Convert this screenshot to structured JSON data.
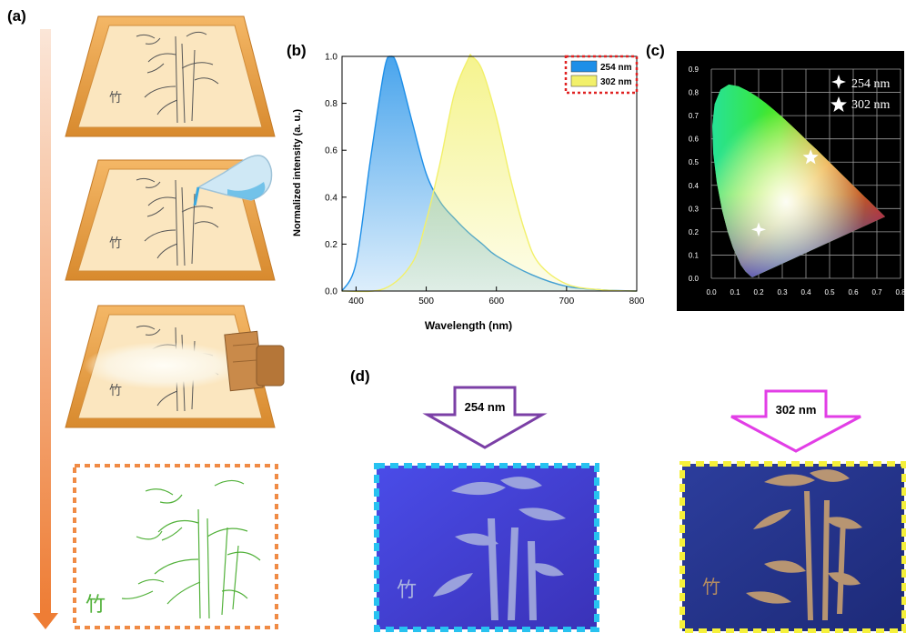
{
  "panel_labels": {
    "a": "(a)",
    "b": "(b)",
    "c": "(c)",
    "d": "(d)"
  },
  "panel_a": {
    "character": "竹",
    "steps": [
      "screen-frame",
      "ink-pouring",
      "squeegee-printing",
      "printed-pattern"
    ]
  },
  "chart_data": {
    "type": "area",
    "xlabel": "Wavelength (nm)",
    "ylabel": "Normalized intensity (a. u.)",
    "xlim": [
      380,
      800
    ],
    "ylim": [
      0,
      1.0
    ],
    "xticks": [
      400,
      500,
      600,
      700,
      800
    ],
    "yticks": [
      "0.0",
      "0.2",
      "0.4",
      "0.6",
      "0.8",
      "1.0"
    ],
    "legend_position": "top-right",
    "series": [
      {
        "name": "254 nm",
        "color": "#1e8fe8",
        "peak": 450,
        "x": [
          380,
          400,
          420,
          440,
          450,
          460,
          480,
          500,
          520,
          540,
          560,
          580,
          600,
          650,
          700,
          750,
          800
        ],
        "y": [
          0.0,
          0.12,
          0.55,
          0.94,
          1.0,
          0.95,
          0.72,
          0.5,
          0.38,
          0.31,
          0.25,
          0.2,
          0.15,
          0.07,
          0.02,
          0.005,
          0.0
        ]
      },
      {
        "name": "302 nm",
        "color": "#f2f06a",
        "peak": 565,
        "x": [
          380,
          440,
          480,
          500,
          520,
          540,
          560,
          565,
          580,
          600,
          620,
          640,
          660,
          700,
          750,
          800
        ],
        "y": [
          0.0,
          0.01,
          0.12,
          0.3,
          0.55,
          0.84,
          0.99,
          1.0,
          0.94,
          0.74,
          0.48,
          0.26,
          0.12,
          0.03,
          0.005,
          0.0
        ]
      }
    ]
  },
  "cie": {
    "xlim": [
      0.0,
      0.8
    ],
    "ylim": [
      0.0,
      0.9
    ],
    "xticks": [
      "0.0",
      "0.1",
      "0.2",
      "0.3",
      "0.4",
      "0.5",
      "0.6",
      "0.7",
      "0.8"
    ],
    "yticks": [
      "0.0",
      "0.1",
      "0.2",
      "0.3",
      "0.4",
      "0.5",
      "0.6",
      "0.7",
      "0.8",
      "0.9"
    ],
    "legend": [
      {
        "symbol": "sparkle",
        "label": "254 nm"
      },
      {
        "symbol": "star",
        "label": "302 nm"
      }
    ],
    "points": [
      {
        "label": "254 nm",
        "x": 0.2,
        "y": 0.21
      },
      {
        "label": "302 nm",
        "x": 0.42,
        "y": 0.52
      }
    ]
  },
  "panel_d": {
    "left_label": "254 nm",
    "right_label": "302 nm",
    "left_arrow_color": "#7b3fa6",
    "right_arrow_color": "#e23ee6",
    "left_border_color": "#27c2f0",
    "right_border_color": "#f5f03a"
  }
}
